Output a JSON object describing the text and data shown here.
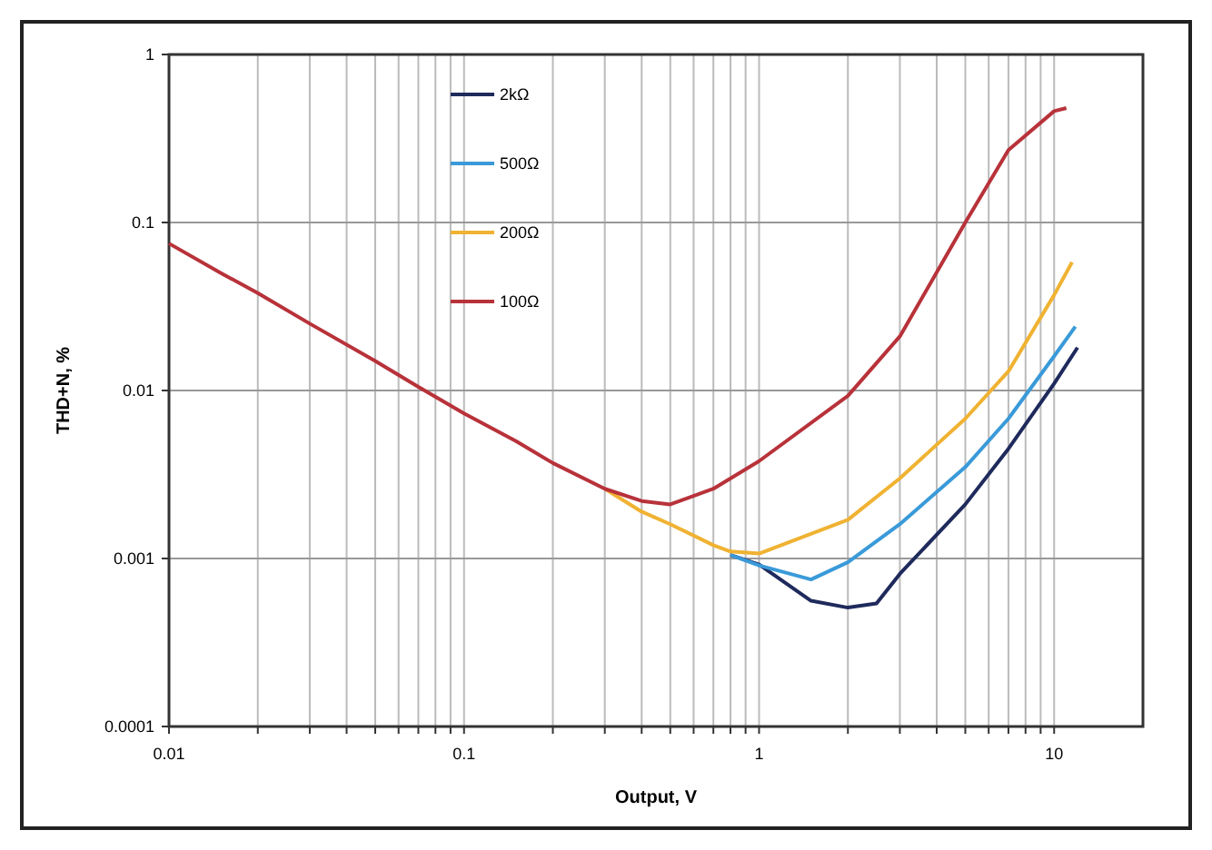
{
  "chart_data": {
    "type": "line",
    "xlabel": "Output, V",
    "ylabel": "THD+N, %",
    "log": "xy",
    "grid": true,
    "legend": "top left",
    "line_style": "solid",
    "marker": "none",
    "xlim": [
      0.01,
      20
    ],
    "ylim": [
      0.0001,
      1
    ],
    "xticks": [
      0.01,
      {
        "value": 0.02,
        "label": null
      },
      {
        "value": 0.03,
        "label": null
      },
      {
        "value": 0.04,
        "label": null
      },
      {
        "value": 0.05,
        "label": null
      },
      {
        "value": 0.06,
        "label": null
      },
      {
        "value": 0.07,
        "label": null
      },
      {
        "value": 0.08,
        "label": null
      },
      {
        "value": 0.09,
        "label": null
      },
      0.1,
      {
        "value": 0.2,
        "label": null
      },
      {
        "value": 0.3,
        "label": null
      },
      {
        "value": 0.4,
        "label": null
      },
      {
        "value": 0.5,
        "label": null
      },
      {
        "value": 0.6,
        "label": null
      },
      {
        "value": 0.7,
        "label": null
      },
      {
        "value": 0.8,
        "label": null
      },
      {
        "value": 0.9,
        "label": null
      },
      1,
      {
        "value": 2,
        "label": null
      },
      {
        "value": 3,
        "label": null
      },
      {
        "value": 4,
        "label": null
      },
      {
        "value": 5,
        "label": null
      },
      {
        "value": 6,
        "label": null
      },
      {
        "value": 7,
        "label": null
      },
      {
        "value": 8,
        "label": null
      },
      {
        "value": 9,
        "label": null
      },
      10
    ],
    "yticks": [
      0.0001,
      0.001,
      0.01,
      0.1,
      1
    ],
    "series": [
      {
        "name": "2kΩ",
        "color": "#1f2a5c",
        "x": [
          0.8,
          1,
          1.5,
          2,
          2.5,
          3,
          5,
          7,
          10,
          12
        ],
        "values": [
          0.00105,
          0.00092,
          0.00056,
          0.00051,
          0.00054,
          0.00081,
          0.0021,
          0.0045,
          0.011,
          0.018
        ]
      },
      {
        "name": "500Ω",
        "color": "#3a9ad9",
        "x": [
          0.8,
          1,
          1.5,
          2,
          3,
          5,
          7,
          10,
          11.8
        ],
        "values": [
          0.00105,
          0.00091,
          0.00075,
          0.00095,
          0.0016,
          0.0035,
          0.0068,
          0.016,
          0.024
        ]
      },
      {
        "name": "200Ω",
        "color": "#f0b232",
        "x": [
          0.3,
          0.4,
          0.5,
          0.7,
          0.8,
          1,
          2,
          3,
          5,
          7,
          10,
          11.5
        ],
        "values": [
          0.0026,
          0.0019,
          0.0016,
          0.0012,
          0.0011,
          0.00107,
          0.0017,
          0.003,
          0.0068,
          0.013,
          0.037,
          0.058
        ]
      },
      {
        "name": "100Ω",
        "color": "#b8323a",
        "x": [
          0.01,
          0.015,
          0.02,
          0.03,
          0.05,
          0.07,
          0.1,
          0.15,
          0.2,
          0.3,
          0.4,
          0.5,
          0.7,
          1,
          2,
          3,
          5,
          7,
          10,
          11
        ],
        "values": [
          0.075,
          0.05,
          0.038,
          0.025,
          0.015,
          0.0105,
          0.0073,
          0.005,
          0.0037,
          0.0026,
          0.0022,
          0.0021,
          0.0026,
          0.0038,
          0.0093,
          0.021,
          0.1,
          0.27,
          0.46,
          0.48
        ]
      }
    ]
  }
}
